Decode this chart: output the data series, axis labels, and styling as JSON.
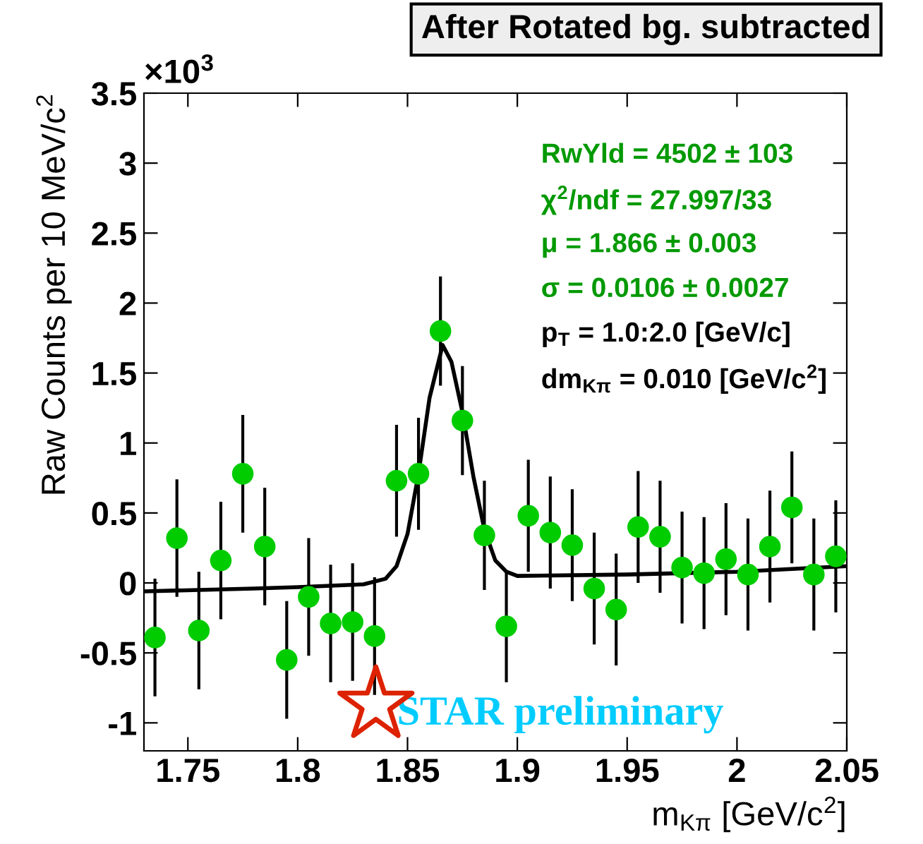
{
  "chart_data": {
    "type": "scatter",
    "title": "After Rotated bg. subtracted",
    "xlabel": "m$_{Kπ}$ [GeV/c$^{2}$]",
    "ylabel": "Raw Counts per 10 MeV/c$^{2}$",
    "annotations": [
      "×10$^{3}$",
      "RwYld = 4502 ± 103",
      "χ$^{2}$/ndf = 27.997/33",
      "μ = 1.866 ± 0.003",
      "σ = 0.0106 ± 0.0027",
      "p$_{T}$ = 1.0:2.0 [GeV/c]",
      "dm$_{Kπ}$ = 0.010 [GeV/c$^{2}$]",
      "STAR preliminary"
    ],
    "xlim": [
      1.73,
      2.05
    ],
    "xticks": [
      1.75,
      1.8,
      1.85,
      1.9,
      1.95,
      2,
      2.05
    ],
    "ylim": [
      -1.2,
      3.5
    ],
    "yticks": [
      -1,
      -0.5,
      0,
      0.5,
      1,
      1.5,
      2,
      2.5,
      3,
      3.5
    ],
    "grid": false,
    "legend": false,
    "series": [
      {
        "marker": "circle",
        "color": "#00cc00",
        "x": [
          1.735,
          1.745,
          1.755,
          1.765,
          1.775,
          1.785,
          1.795,
          1.805,
          1.815,
          1.825,
          1.835,
          1.845,
          1.855,
          1.865,
          1.875,
          1.885,
          1.895,
          1.905,
          1.915,
          1.925,
          1.935,
          1.945,
          1.955,
          1.965,
          1.975,
          1.985,
          1.995,
          2.005,
          2.015,
          2.025,
          2.035,
          2.045
        ],
        "values": [
          -0.39,
          0.32,
          -0.34,
          0.16,
          0.78,
          0.26,
          -0.55,
          -0.1,
          -0.29,
          -0.28,
          -0.38,
          0.73,
          0.78,
          1.8,
          1.16,
          0.34,
          -0.31,
          0.48,
          0.36,
          0.27,
          -0.04,
          -0.19,
          0.4,
          0.33,
          0.11,
          0.07,
          0.17,
          0.06,
          0.26,
          0.54,
          0.06,
          0.19
        ],
        "errors": [
          0.42,
          0.42,
          0.42,
          0.42,
          0.42,
          0.42,
          0.42,
          0.42,
          0.42,
          0.42,
          0.42,
          0.4,
          0.4,
          0.39,
          0.39,
          0.39,
          0.4,
          0.4,
          0.4,
          0.4,
          0.4,
          0.4,
          0.4,
          0.4,
          0.4,
          0.4,
          0.4,
          0.4,
          0.4,
          0.4,
          0.4,
          0.4
        ]
      },
      {
        "type": "line",
        "marker": "none",
        "color": "#000000",
        "x": [
          1.73,
          1.78,
          1.8,
          1.83,
          1.84,
          1.845,
          1.85,
          1.855,
          1.86,
          1.866,
          1.87,
          1.875,
          1.88,
          1.885,
          1.89,
          1.895,
          1.9,
          1.95,
          2.0,
          2.05
        ],
        "values": [
          -0.06,
          -0.04,
          -0.03,
          -0.01,
          0.03,
          0.12,
          0.35,
          0.78,
          1.32,
          1.7,
          1.58,
          1.22,
          0.76,
          0.38,
          0.16,
          0.08,
          0.05,
          0.06,
          0.08,
          0.12
        ]
      }
    ]
  }
}
